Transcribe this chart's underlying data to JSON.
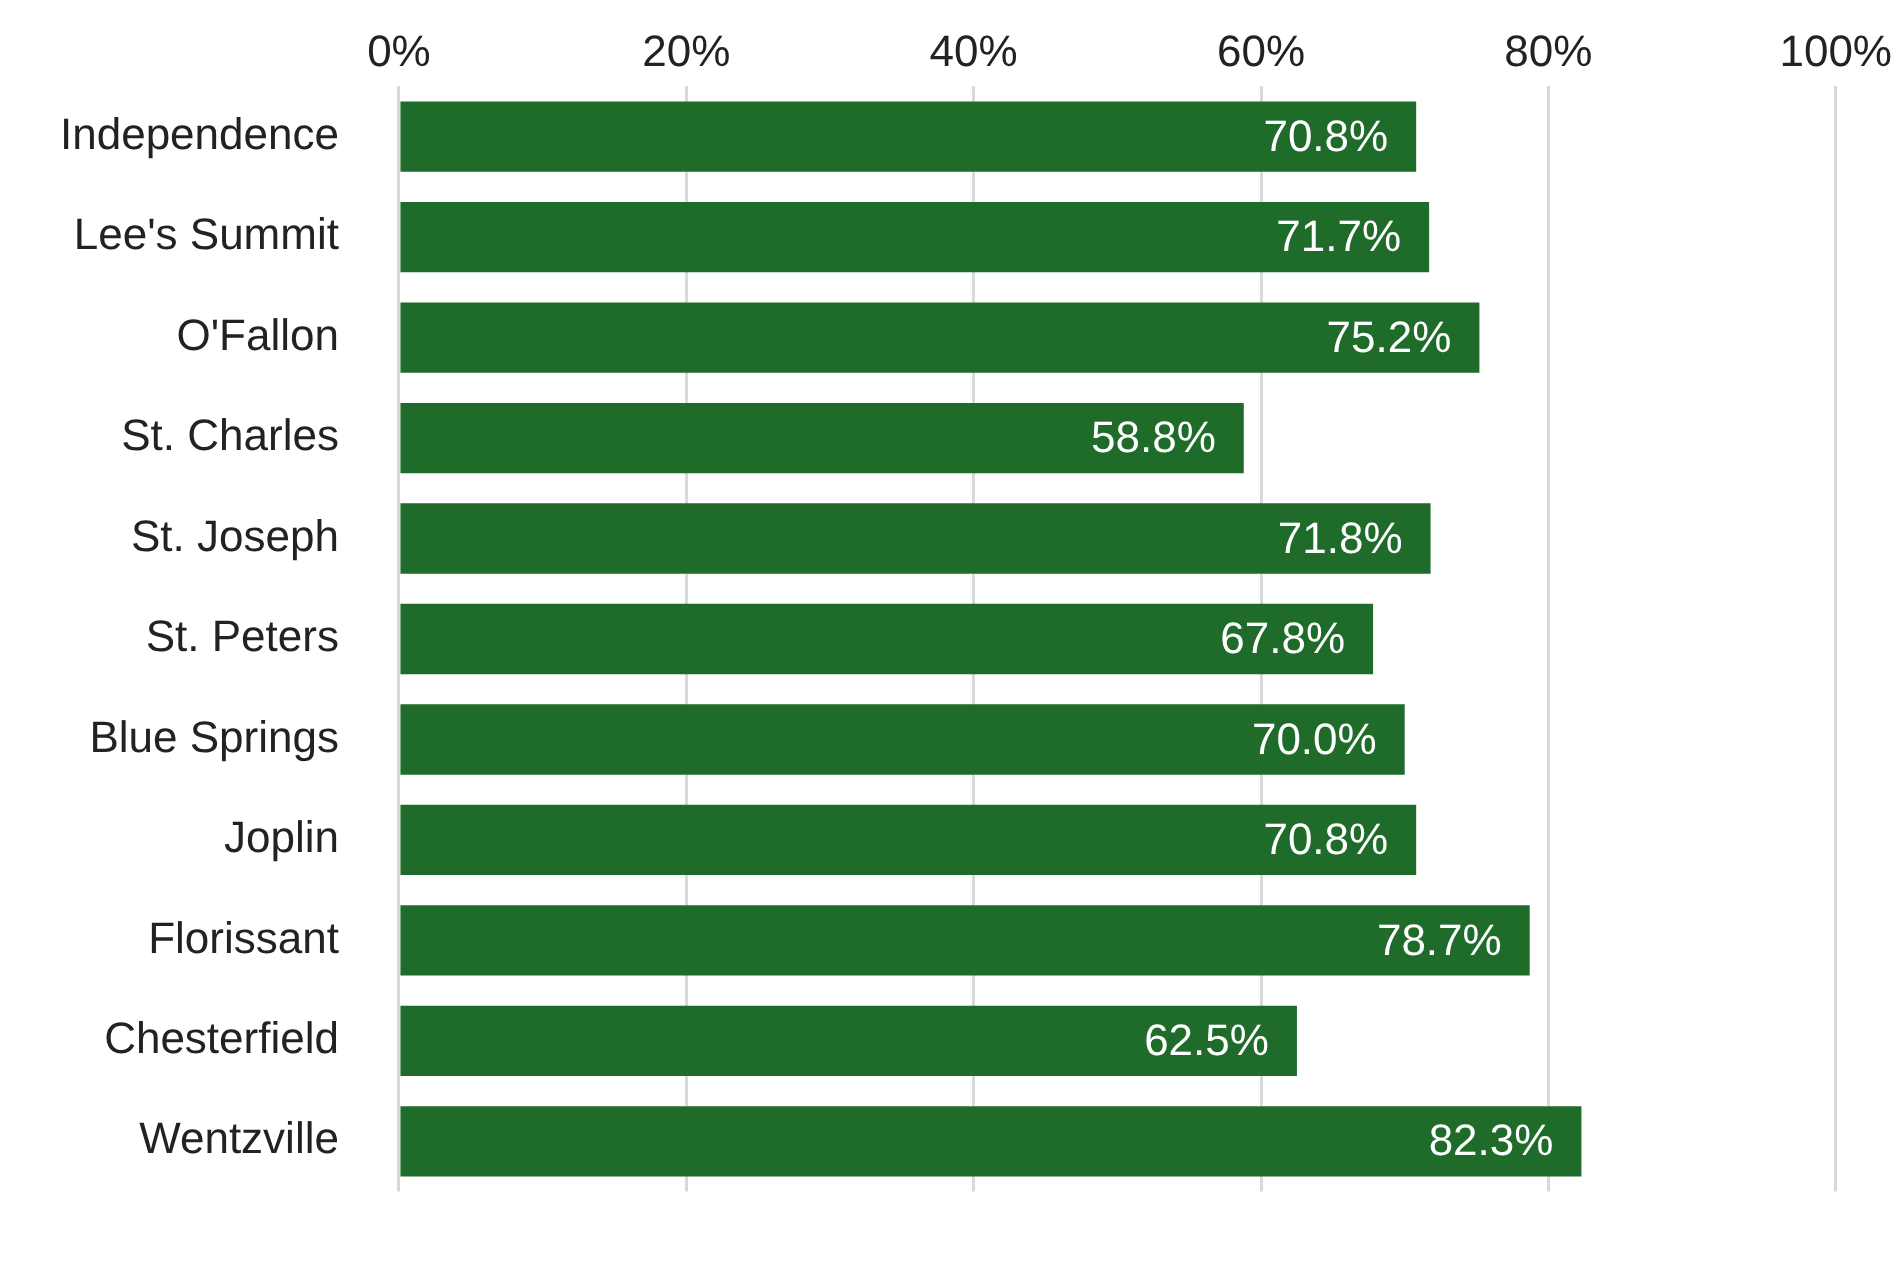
{
  "chart_data": {
    "type": "bar",
    "orientation": "horizontal",
    "categories": [
      "Independence",
      "Lee's Summit",
      "O'Fallon",
      "St. Charles",
      "St. Joseph",
      "St. Peters",
      "Blue Springs",
      "Joplin",
      "Florissant",
      "Chesterfield",
      "Wentzville"
    ],
    "values": [
      70.8,
      71.7,
      75.2,
      58.8,
      71.8,
      67.8,
      70.0,
      70.8,
      78.7,
      62.5,
      82.3
    ],
    "value_labels": [
      "70.8%",
      "71.7%",
      "75.2%",
      "58.8%",
      "71.8%",
      "67.8%",
      "70.0%",
      "70.8%",
      "78.7%",
      "62.5%",
      "82.3%"
    ],
    "color": "#1e6b2a",
    "xlim": [
      0,
      100
    ],
    "xticks": [
      {
        "value": 0,
        "label": "0%"
      },
      {
        "value": 20,
        "label": "20%"
      },
      {
        "value": 40,
        "label": "40%"
      },
      {
        "value": 60,
        "label": "60%"
      },
      {
        "value": 80,
        "label": "80%"
      },
      {
        "value": 100,
        "label": "100%"
      }
    ],
    "grid": "x"
  }
}
